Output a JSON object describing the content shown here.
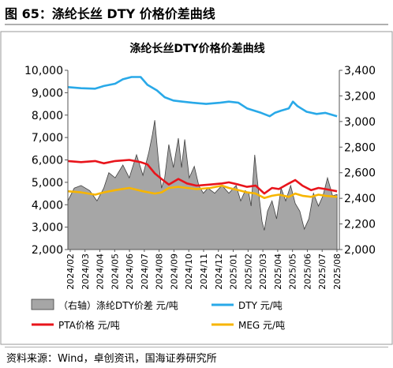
{
  "figure": {
    "title": "图 65：涤纶长丝 DTY 价格价差曲线",
    "source": "资料来源：Wind，卓创资讯，国海证券研究所"
  },
  "colors": {
    "spread_fill": "#a6a6a6",
    "spread_stroke": "#404040",
    "dty": "#29a9e8",
    "pta": "#e8141b",
    "meg": "#f7b500"
  },
  "chart_data": {
    "type": "line",
    "title": "涤纶长丝DTY价格价差曲线",
    "xlabel": "",
    "ylabel": "",
    "x_start": "2024-02",
    "x_end": "2025-09",
    "categories": [
      "2024/02",
      "2024/03",
      "2024/04",
      "2024/05",
      "2024/06",
      "2024/07",
      "2024/08",
      "2024/09",
      "2024/10",
      "2024/11",
      "2024/12",
      "2025/01",
      "2025/02",
      "2025/03",
      "2025/04",
      "2025/05",
      "2025/06",
      "2025/07",
      "2025/08"
    ],
    "y_left": {
      "min": 2000,
      "max": 10000,
      "step": 1000,
      "ticks": [
        "2,000",
        "3,000",
        "4,000",
        "5,000",
        "6,000",
        "7,000",
        "8,000",
        "9,000",
        "10,000"
      ]
    },
    "y_right": {
      "min": 2000,
      "max": 3400,
      "step": 200,
      "ticks": [
        "2,000",
        "2,200",
        "2,400",
        "2,600",
        "2,800",
        "3,000",
        "3,200",
        "3,400"
      ]
    },
    "grid": false,
    "legend_position": "bottom",
    "series": [
      {
        "name": "（右轴）涤纶DTY价差 元/吨",
        "type": "area",
        "axis": "right",
        "points": [
          [
            "2024-02-01",
            2380
          ],
          [
            "2024-02-15",
            2480
          ],
          [
            "2024-03-01",
            2500
          ],
          [
            "2024-03-20",
            2460
          ],
          [
            "2024-04-05",
            2380
          ],
          [
            "2024-04-20",
            2480
          ],
          [
            "2024-05-01",
            2600
          ],
          [
            "2024-05-15",
            2560
          ],
          [
            "2024-06-01",
            2660
          ],
          [
            "2024-06-15",
            2560
          ],
          [
            "2024-07-01",
            2740
          ],
          [
            "2024-07-15",
            2580
          ],
          [
            "2024-07-28",
            2760
          ],
          [
            "2024-08-05",
            2900
          ],
          [
            "2024-08-10",
            3010
          ],
          [
            "2024-08-18",
            2700
          ],
          [
            "2024-08-25",
            2480
          ],
          [
            "2024-09-01",
            2560
          ],
          [
            "2024-09-10",
            2820
          ],
          [
            "2024-09-20",
            2640
          ],
          [
            "2024-10-01",
            2870
          ],
          [
            "2024-10-08",
            2640
          ],
          [
            "2024-10-15",
            2860
          ],
          [
            "2024-10-25",
            2560
          ],
          [
            "2024-11-05",
            2650
          ],
          [
            "2024-11-15",
            2500
          ],
          [
            "2024-11-25",
            2440
          ],
          [
            "2024-12-05",
            2480
          ],
          [
            "2024-12-20",
            2440
          ],
          [
            "2025-01-05",
            2500
          ],
          [
            "2025-01-20",
            2440
          ],
          [
            "2025-02-05",
            2500
          ],
          [
            "2025-02-15",
            2380
          ],
          [
            "2025-02-25",
            2460
          ],
          [
            "2025-03-05",
            2440
          ],
          [
            "2025-03-10",
            2340
          ],
          [
            "2025-03-18",
            2740
          ],
          [
            "2025-03-22",
            2600
          ],
          [
            "2025-03-28",
            2400
          ],
          [
            "2025-04-03",
            2220
          ],
          [
            "2025-04-08",
            2150
          ],
          [
            "2025-04-15",
            2300
          ],
          [
            "2025-04-25",
            2380
          ],
          [
            "2025-05-05",
            2240
          ],
          [
            "2025-05-15",
            2480
          ],
          [
            "2025-05-25",
            2380
          ],
          [
            "2025-06-05",
            2500
          ],
          [
            "2025-06-15",
            2360
          ],
          [
            "2025-06-25",
            2300
          ],
          [
            "2025-07-05",
            2160
          ],
          [
            "2025-07-15",
            2240
          ],
          [
            "2025-07-25",
            2440
          ],
          [
            "2025-08-05",
            2340
          ],
          [
            "2025-08-15",
            2420
          ],
          [
            "2025-08-25",
            2560
          ],
          [
            "2025-09-05",
            2420
          ],
          [
            "2025-09-15",
            2430
          ]
        ]
      },
      {
        "name": "DTY 元/吨",
        "type": "line",
        "axis": "left",
        "points": [
          [
            "2024-02-01",
            9250
          ],
          [
            "2024-03-01",
            9200
          ],
          [
            "2024-04-01",
            9180
          ],
          [
            "2024-04-20",
            9300
          ],
          [
            "2024-05-15",
            9400
          ],
          [
            "2024-06-01",
            9600
          ],
          [
            "2024-06-20",
            9700
          ],
          [
            "2024-07-10",
            9700
          ],
          [
            "2024-07-25",
            9350
          ],
          [
            "2024-08-15",
            9100
          ],
          [
            "2024-09-01",
            8800
          ],
          [
            "2024-09-20",
            8650
          ],
          [
            "2024-10-10",
            8600
          ],
          [
            "2024-11-01",
            8550
          ],
          [
            "2024-12-01",
            8500
          ],
          [
            "2025-01-01",
            8550
          ],
          [
            "2025-01-20",
            8600
          ],
          [
            "2025-02-10",
            8550
          ],
          [
            "2025-03-01",
            8300
          ],
          [
            "2025-04-01",
            8100
          ],
          [
            "2025-04-20",
            7950
          ],
          [
            "2025-05-01",
            8100
          ],
          [
            "2025-05-15",
            8200
          ],
          [
            "2025-06-01",
            8300
          ],
          [
            "2025-06-10",
            8600
          ],
          [
            "2025-06-20",
            8400
          ],
          [
            "2025-07-10",
            8150
          ],
          [
            "2025-08-01",
            8050
          ],
          [
            "2025-08-20",
            8100
          ],
          [
            "2025-09-15",
            7950
          ]
        ]
      },
      {
        "name": "PTA价格 元/吨",
        "type": "line",
        "axis": "left",
        "points": [
          [
            "2024-02-01",
            5950
          ],
          [
            "2024-03-01",
            5900
          ],
          [
            "2024-04-01",
            5950
          ],
          [
            "2024-04-20",
            5850
          ],
          [
            "2024-05-15",
            5950
          ],
          [
            "2024-06-15",
            6000
          ],
          [
            "2024-07-10",
            5900
          ],
          [
            "2024-07-25",
            5800
          ],
          [
            "2024-08-10",
            5400
          ],
          [
            "2024-08-25",
            5150
          ],
          [
            "2024-09-10",
            4900
          ],
          [
            "2024-10-01",
            5150
          ],
          [
            "2024-10-20",
            4950
          ],
          [
            "2024-11-10",
            4850
          ],
          [
            "2024-12-10",
            4900
          ],
          [
            "2025-01-05",
            4950
          ],
          [
            "2025-01-20",
            5000
          ],
          [
            "2025-02-10",
            4900
          ],
          [
            "2025-03-01",
            4800
          ],
          [
            "2025-03-20",
            4850
          ],
          [
            "2025-04-08",
            4500
          ],
          [
            "2025-04-25",
            4750
          ],
          [
            "2025-05-10",
            4700
          ],
          [
            "2025-06-01",
            4950
          ],
          [
            "2025-06-15",
            5100
          ],
          [
            "2025-07-01",
            4850
          ],
          [
            "2025-07-20",
            4650
          ],
          [
            "2025-08-05",
            4750
          ],
          [
            "2025-08-20",
            4700
          ],
          [
            "2025-09-15",
            4600
          ]
        ]
      },
      {
        "name": "MEG 元/吨",
        "type": "line",
        "axis": "left",
        "points": [
          [
            "2024-02-01",
            4600
          ],
          [
            "2024-03-01",
            4550
          ],
          [
            "2024-04-01",
            4450
          ],
          [
            "2024-04-20",
            4550
          ],
          [
            "2024-05-15",
            4650
          ],
          [
            "2024-06-15",
            4750
          ],
          [
            "2024-07-15",
            4600
          ],
          [
            "2024-08-10",
            4500
          ],
          [
            "2024-08-25",
            4550
          ],
          [
            "2024-09-10",
            4750
          ],
          [
            "2024-10-01",
            4800
          ],
          [
            "2024-10-20",
            4750
          ],
          [
            "2024-11-10",
            4700
          ],
          [
            "2024-12-10",
            4750
          ],
          [
            "2025-01-05",
            4850
          ],
          [
            "2025-01-20",
            4750
          ],
          [
            "2025-02-10",
            4650
          ],
          [
            "2025-03-01",
            4550
          ],
          [
            "2025-03-20",
            4500
          ],
          [
            "2025-04-08",
            4300
          ],
          [
            "2025-04-25",
            4400
          ],
          [
            "2025-05-10",
            4450
          ],
          [
            "2025-06-01",
            4350
          ],
          [
            "2025-06-15",
            4500
          ],
          [
            "2025-07-01",
            4400
          ],
          [
            "2025-07-20",
            4350
          ],
          [
            "2025-08-05",
            4450
          ],
          [
            "2025-08-20",
            4400
          ],
          [
            "2025-09-15",
            4350
          ]
        ]
      }
    ]
  }
}
